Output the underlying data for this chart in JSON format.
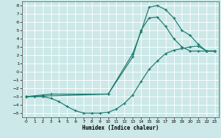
{
  "xlabel": "Humidex (Indice chaleur)",
  "bg_color": "#cce8e8",
  "grid_color": "#ffffff",
  "line_color": "#1a7a6e",
  "xlim": [
    -0.5,
    23.5
  ],
  "ylim": [
    -5.5,
    8.5
  ],
  "xticks": [
    0,
    1,
    2,
    3,
    4,
    5,
    6,
    7,
    8,
    9,
    10,
    11,
    12,
    13,
    14,
    15,
    16,
    17,
    18,
    19,
    20,
    21,
    22,
    23
  ],
  "yticks": [
    -5,
    -4,
    -3,
    -2,
    -1,
    0,
    1,
    2,
    3,
    4,
    5,
    6,
    7,
    8
  ],
  "curve1_x": [
    0,
    1,
    2,
    3,
    4,
    5,
    6,
    7,
    8,
    9,
    10,
    11,
    12,
    13,
    14,
    15,
    16,
    17,
    18,
    19,
    20,
    21,
    22,
    23
  ],
  "curve1_y": [
    -3,
    -3,
    -3,
    -3.2,
    -3.6,
    -4.2,
    -4.7,
    -5,
    -5,
    -5,
    -4.9,
    -4.5,
    -3.8,
    -2.8,
    -1.2,
    0.3,
    1.3,
    2.2,
    2.6,
    2.8,
    3.0,
    3.1,
    2.5,
    2.5
  ],
  "curve2_x": [
    0,
    2,
    3,
    10,
    13,
    14,
    15,
    16,
    17,
    18,
    19,
    20,
    21,
    22,
    23
  ],
  "curve2_y": [
    -3,
    -2.8,
    -2.7,
    -2.7,
    2.2,
    4.8,
    7.8,
    8,
    7.5,
    6.5,
    5.0,
    4.4,
    3.3,
    2.5,
    2.5
  ],
  "curve3_x": [
    0,
    10,
    13,
    14,
    15,
    16,
    17,
    18,
    19,
    20,
    21,
    22,
    23
  ],
  "curve3_y": [
    -3,
    -2.7,
    1.8,
    5.0,
    6.5,
    6.6,
    5.5,
    4.0,
    3.0,
    2.5,
    2.5,
    2.5,
    2.5
  ]
}
